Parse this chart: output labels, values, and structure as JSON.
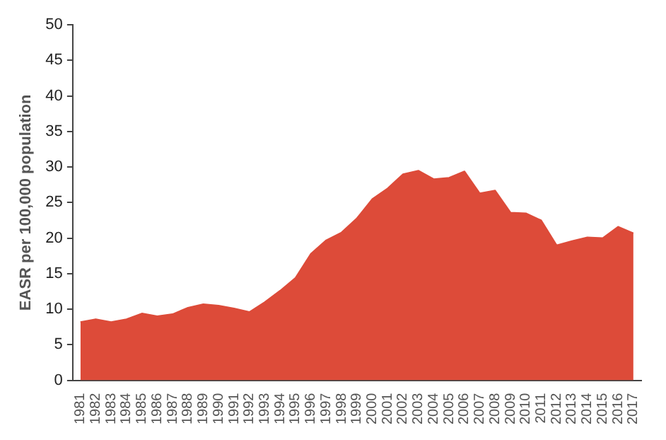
{
  "chart_data": {
    "type": "area",
    "ylabel": "EASR per 100,000 population",
    "categories": [
      "1981",
      "1982",
      "1983",
      "1984",
      "1985",
      "1986",
      "1987",
      "1988",
      "1989",
      "1990",
      "1991",
      "1992",
      "1993",
      "1994",
      "1995",
      "1996",
      "1997",
      "1998",
      "1999",
      "2000",
      "2001",
      "2002",
      "2003",
      "2004",
      "2005",
      "2006",
      "2007",
      "2008",
      "2009",
      "2010",
      "2011",
      "2012",
      "2013",
      "2014",
      "2015",
      "2016",
      "2017"
    ],
    "series": [
      {
        "color": "#dd4b39",
        "values": [
          8.2,
          8.6,
          8.2,
          8.6,
          9.4,
          9.0,
          9.3,
          10.2,
          10.7,
          10.5,
          10.1,
          9.6,
          11.0,
          12.6,
          14.4,
          17.8,
          19.7,
          20.8,
          22.8,
          25.5,
          27.0,
          29.0,
          29.5,
          28.3,
          28.5,
          29.4,
          26.3,
          26.7,
          23.6,
          23.5,
          22.5,
          19.0,
          19.6,
          20.1,
          20.0,
          21.6,
          20.7
        ]
      }
    ],
    "ylim": [
      0,
      50
    ],
    "yticks": [
      0,
      5,
      10,
      15,
      20,
      25,
      30,
      35,
      40,
      45,
      50
    ],
    "grid": false,
    "legend": false
  }
}
